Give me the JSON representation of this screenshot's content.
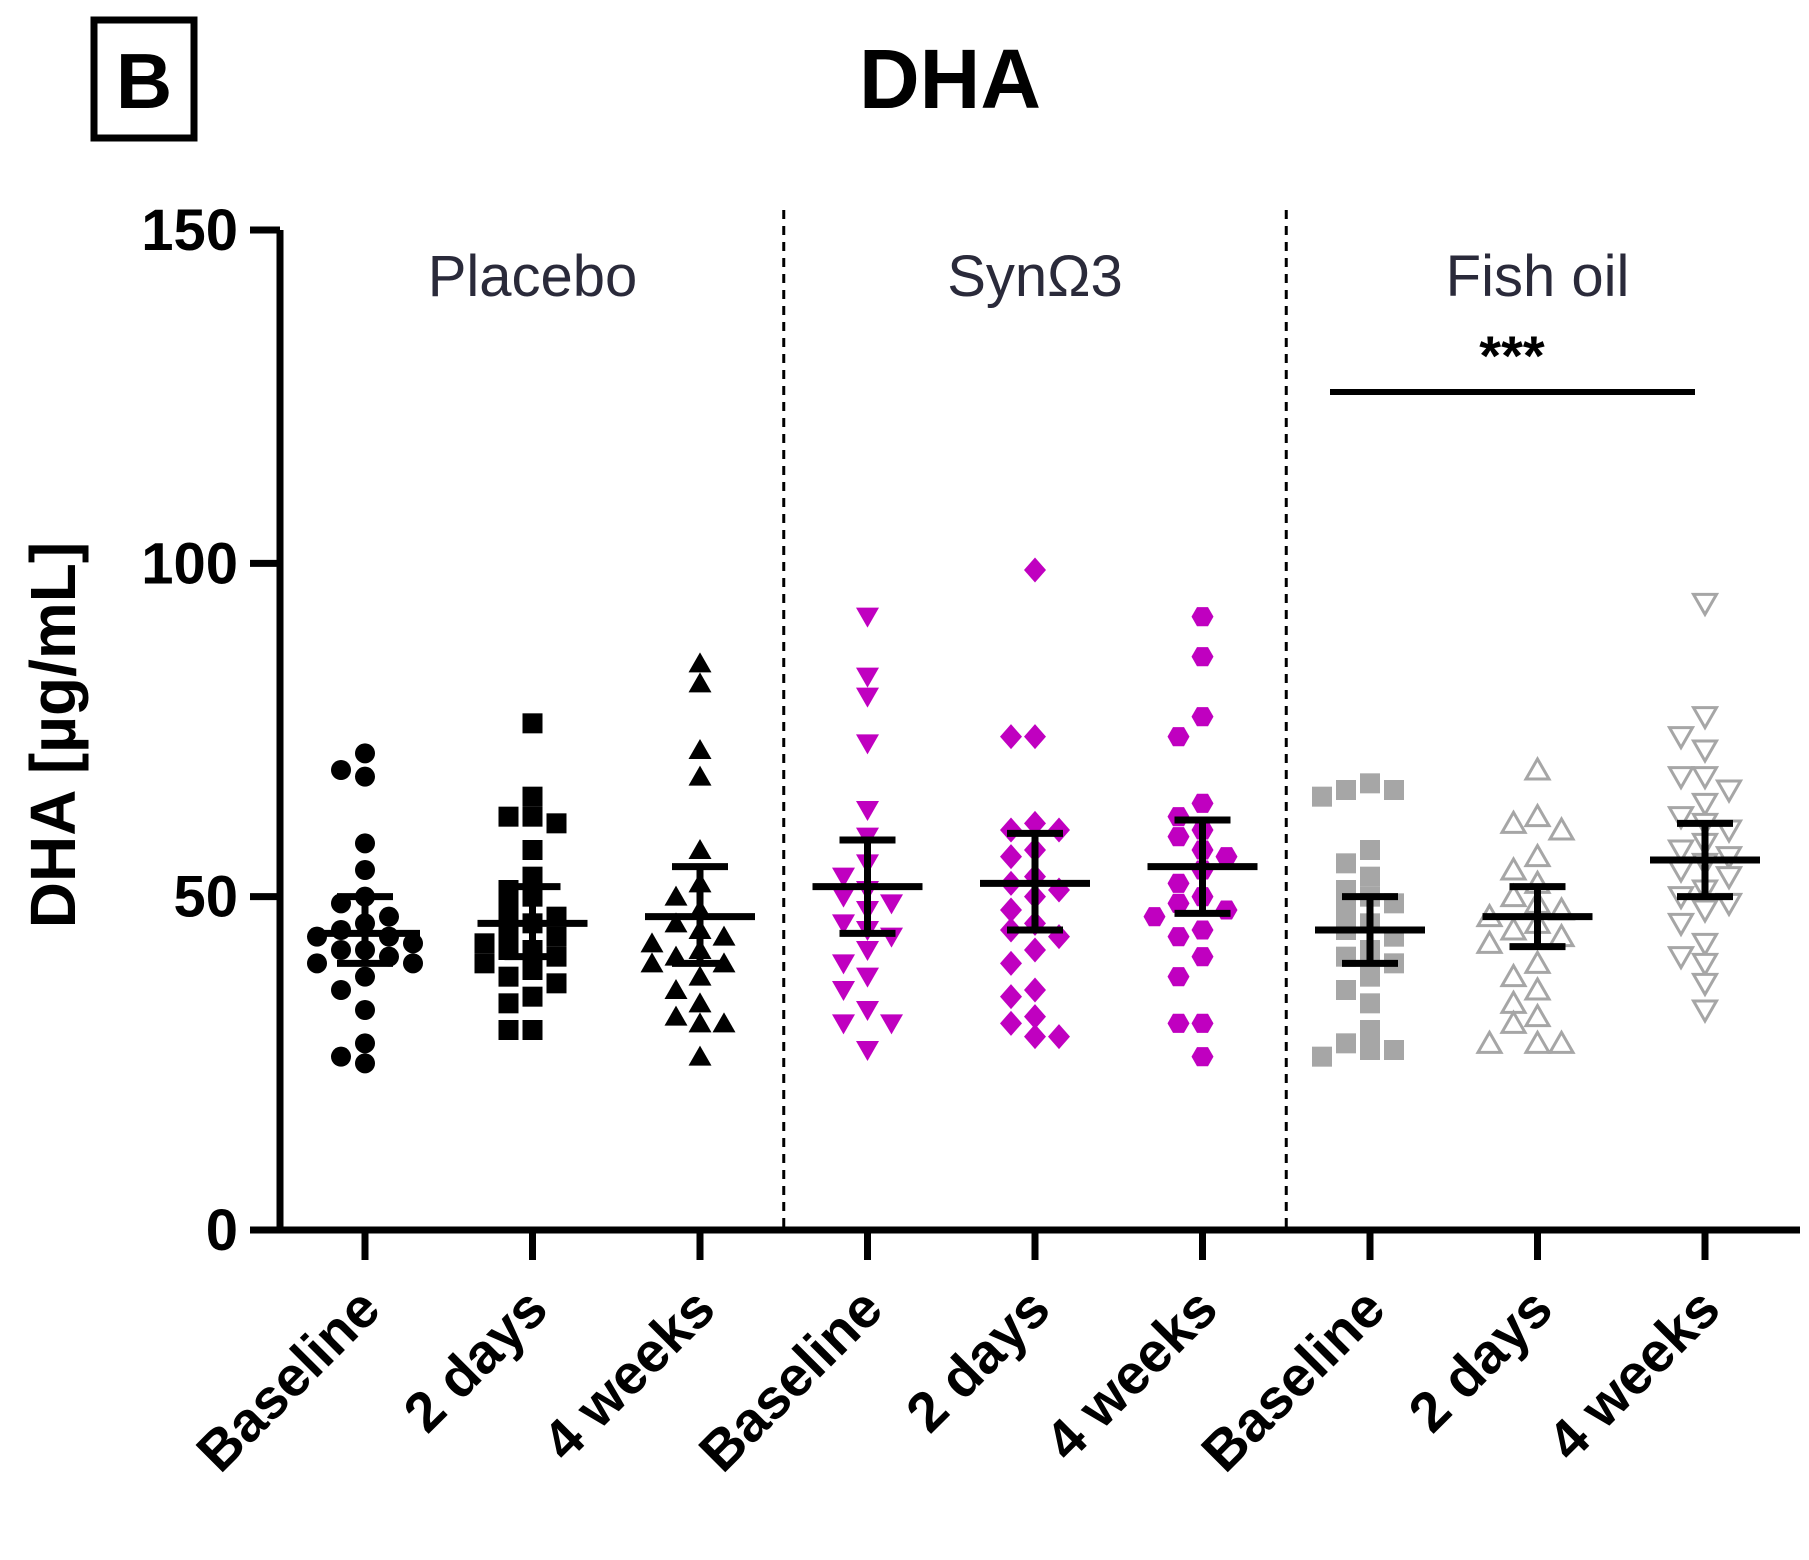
{
  "chart_data": {
    "type": "scatter",
    "panel_label": "B",
    "title": "DHA",
    "xlabel": "",
    "ylabel": "DHA [µg/mL]",
    "ylim": [
      0,
      150
    ],
    "yticks": [
      "0",
      "50",
      "100",
      "150"
    ],
    "groups": [
      {
        "name": "Placebo",
        "categories": [
          0,
          1,
          2
        ]
      },
      {
        "name": "SynΩ3",
        "categories": [
          3,
          4,
          5
        ]
      },
      {
        "name": "Fish oil",
        "categories": [
          6,
          7,
          8
        ]
      }
    ],
    "significance": {
      "label": "***",
      "group": "Fish oil"
    },
    "series": [
      {
        "name": "Placebo Baseline",
        "category": "Baseline",
        "color": "#000000",
        "marker": "circle",
        "mean": 44.5,
        "sem_low": 40,
        "sem_high": 50,
        "values": [
          71.5,
          68,
          69,
          58,
          54,
          50,
          49,
          47,
          46,
          45,
          44,
          44,
          43,
          42,
          42,
          41,
          40,
          40,
          38,
          36,
          33,
          28,
          26,
          25
        ]
      },
      {
        "name": "Placebo 2 days",
        "category": "2 days",
        "color": "#000000",
        "marker": "square",
        "mean": 46,
        "sem_low": 41,
        "sem_high": 51.5,
        "values": [
          76,
          65,
          62,
          61,
          62,
          57,
          53,
          51,
          50,
          48,
          47,
          46,
          45,
          44,
          43,
          42,
          42,
          41,
          40,
          39,
          38,
          37,
          35,
          34,
          30,
          30
        ]
      },
      {
        "name": "Placebo 4 weeks",
        "category": "4 weeks",
        "color": "#000000",
        "marker": "triangle-up",
        "mean": 47,
        "sem_low": 40,
        "sem_high": 54.5,
        "values": [
          85,
          82,
          72,
          68,
          57,
          52,
          50,
          48,
          46,
          45,
          44,
          43,
          42,
          41,
          40,
          40,
          38,
          36,
          34,
          32,
          31,
          31,
          26
        ]
      },
      {
        "name": "SynΩ3 Baseline",
        "category": "Baseline",
        "color": "#c000c0",
        "marker": "triangle-down",
        "mean": 51.5,
        "sem_low": 44.5,
        "sem_high": 58.5,
        "values": [
          92,
          83,
          80,
          73,
          63,
          59,
          55,
          53,
          51,
          50,
          49,
          48,
          46,
          45,
          44,
          42,
          40,
          38,
          36,
          33,
          31,
          31,
          27
        ]
      },
      {
        "name": "SynΩ3 2 days",
        "category": "2 days",
        "color": "#c000c0",
        "marker": "diamond",
        "mean": 52,
        "sem_low": 45,
        "sem_high": 59.5,
        "values": [
          99,
          74,
          74,
          61,
          60,
          60,
          57,
          56,
          53,
          52,
          51,
          50,
          48,
          46,
          45,
          44,
          42,
          40,
          36,
          35,
          32,
          31,
          29,
          29
        ]
      },
      {
        "name": "SynΩ3 4 weeks",
        "category": "4 weeks",
        "color": "#c000c0",
        "marker": "hexagon",
        "mean": 54.5,
        "sem_low": 47.5,
        "sem_high": 61.5,
        "values": [
          92,
          86,
          77,
          74,
          64,
          62,
          60,
          59,
          57,
          56,
          54,
          52,
          50,
          49,
          48,
          47,
          45,
          44,
          41,
          38,
          31,
          31,
          26
        ]
      },
      {
        "name": "Fish oil Baseline",
        "category": "Baseline",
        "color": "#a6a6a6",
        "marker": "square",
        "mean": 45,
        "sem_low": 40,
        "sem_high": 50,
        "values": [
          67,
          66,
          66,
          65,
          57,
          55,
          53,
          51,
          50,
          49,
          48,
          46,
          45,
          44,
          42,
          41,
          40,
          38,
          36,
          34,
          30,
          28,
          27,
          27,
          26
        ]
      },
      {
        "name": "Fish oil 2 days",
        "category": "2 days",
        "color": "#a6a6a6",
        "marker": "triangle-up-open",
        "mean": 47,
        "sem_low": 42.5,
        "sem_high": 51.5,
        "values": [
          69,
          62,
          61,
          60,
          56,
          54,
          52,
          50,
          49,
          48,
          47,
          46,
          45,
          44,
          43,
          40,
          38,
          36,
          34,
          32,
          31,
          28,
          28,
          28
        ]
      },
      {
        "name": "Fish oil 4 weeks",
        "category": "4 weeks",
        "color": "#a6a6a6",
        "marker": "triangle-down-open",
        "mean": 55.5,
        "sem_low": 50,
        "sem_high": 61,
        "values": [
          94,
          77,
          74,
          72,
          68,
          68,
          66,
          64,
          62,
          61,
          60,
          58,
          57,
          56,
          55,
          54,
          53,
          51,
          50,
          49,
          48,
          46,
          43,
          41,
          40,
          37,
          33
        ]
      }
    ]
  }
}
